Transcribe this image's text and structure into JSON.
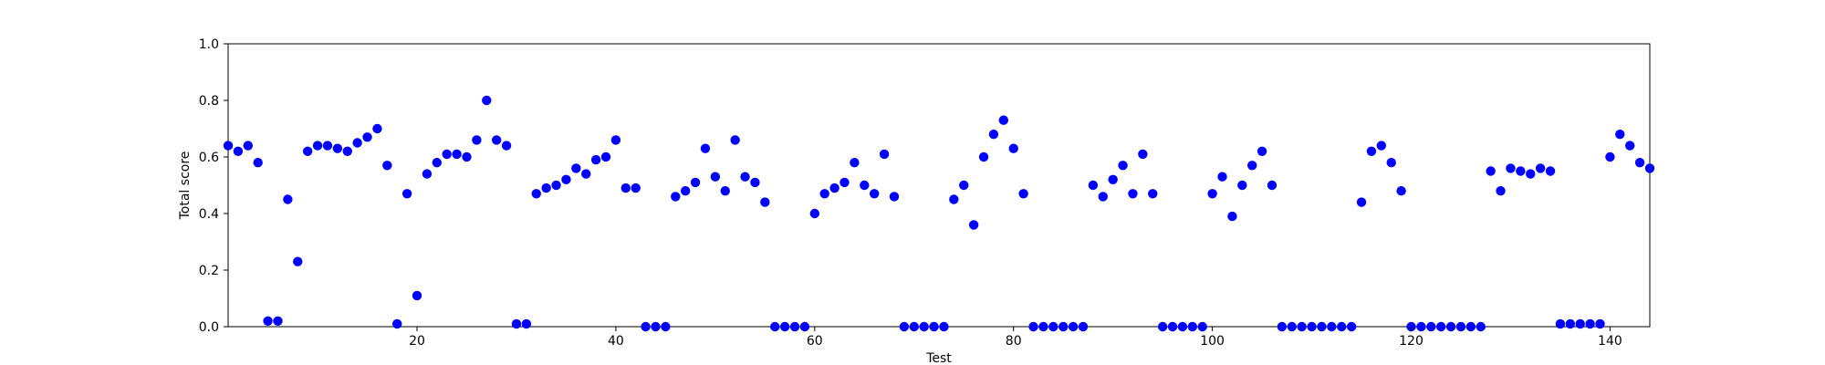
{
  "chart_data": {
    "type": "scatter",
    "title": "",
    "xlabel": "Test",
    "ylabel": "Total score",
    "xlim": [
      1,
      144
    ],
    "ylim": [
      0,
      1
    ],
    "xticks": [
      20,
      40,
      60,
      80,
      100,
      120,
      140
    ],
    "yticks": [
      0.0,
      0.2,
      0.4,
      0.6,
      0.8,
      1.0
    ],
    "grid": false,
    "legend": "none",
    "marker_color": "#0000ff",
    "series": [
      {
        "points": [
          [
            1,
            0.64
          ],
          [
            2,
            0.62
          ],
          [
            3,
            0.64
          ],
          [
            4,
            0.58
          ],
          [
            5,
            0.02
          ],
          [
            6,
            0.02
          ],
          [
            7,
            0.45
          ],
          [
            8,
            0.23
          ],
          [
            9,
            0.62
          ],
          [
            10,
            0.64
          ],
          [
            11,
            0.64
          ],
          [
            12,
            0.63
          ],
          [
            13,
            0.62
          ],
          [
            14,
            0.65
          ],
          [
            15,
            0.67
          ],
          [
            16,
            0.7
          ],
          [
            17,
            0.57
          ],
          [
            18,
            0.01
          ],
          [
            19,
            0.47
          ],
          [
            20,
            0.11
          ],
          [
            21,
            0.54
          ],
          [
            22,
            0.58
          ],
          [
            23,
            0.61
          ],
          [
            24,
            0.61
          ],
          [
            25,
            0.6
          ],
          [
            26,
            0.66
          ],
          [
            27,
            0.8
          ],
          [
            28,
            0.66
          ],
          [
            29,
            0.64
          ],
          [
            30,
            0.01
          ],
          [
            31,
            0.01
          ],
          [
            32,
            0.47
          ],
          [
            33,
            0.49
          ],
          [
            34,
            0.5
          ],
          [
            35,
            0.52
          ],
          [
            36,
            0.56
          ],
          [
            37,
            0.54
          ],
          [
            38,
            0.59
          ],
          [
            39,
            0.6
          ],
          [
            40,
            0.66
          ],
          [
            41,
            0.49
          ],
          [
            42,
            0.49
          ],
          [
            43,
            0.0
          ],
          [
            44,
            0.0
          ],
          [
            45,
            0.0
          ],
          [
            46,
            0.46
          ],
          [
            47,
            0.48
          ],
          [
            48,
            0.51
          ],
          [
            49,
            0.63
          ],
          [
            50,
            0.53
          ],
          [
            51,
            0.48
          ],
          [
            52,
            0.66
          ],
          [
            53,
            0.53
          ],
          [
            54,
            0.51
          ],
          [
            55,
            0.44
          ],
          [
            56,
            0.0
          ],
          [
            57,
            0.0
          ],
          [
            58,
            0.0
          ],
          [
            59,
            0.0
          ],
          [
            60,
            0.4
          ],
          [
            61,
            0.47
          ],
          [
            62,
            0.49
          ],
          [
            63,
            0.51
          ],
          [
            64,
            0.58
          ],
          [
            65,
            0.5
          ],
          [
            66,
            0.47
          ],
          [
            67,
            0.61
          ],
          [
            68,
            0.46
          ],
          [
            69,
            0.0
          ],
          [
            70,
            0.0
          ],
          [
            71,
            0.0
          ],
          [
            72,
            0.0
          ],
          [
            73,
            0.0
          ],
          [
            74,
            0.45
          ],
          [
            75,
            0.5
          ],
          [
            76,
            0.36
          ],
          [
            77,
            0.6
          ],
          [
            78,
            0.68
          ],
          [
            79,
            0.73
          ],
          [
            80,
            0.63
          ],
          [
            81,
            0.47
          ],
          [
            82,
            0.0
          ],
          [
            83,
            0.0
          ],
          [
            84,
            0.0
          ],
          [
            85,
            0.0
          ],
          [
            86,
            0.0
          ],
          [
            87,
            0.0
          ],
          [
            88,
            0.5
          ],
          [
            89,
            0.46
          ],
          [
            90,
            0.52
          ],
          [
            91,
            0.57
          ],
          [
            92,
            0.47
          ],
          [
            93,
            0.61
          ],
          [
            94,
            0.47
          ],
          [
            95,
            0.0
          ],
          [
            96,
            0.0
          ],
          [
            97,
            0.0
          ],
          [
            98,
            0.0
          ],
          [
            99,
            0.0
          ],
          [
            100,
            0.47
          ],
          [
            101,
            0.53
          ],
          [
            102,
            0.39
          ],
          [
            103,
            0.5
          ],
          [
            104,
            0.57
          ],
          [
            105,
            0.62
          ],
          [
            106,
            0.5
          ],
          [
            107,
            0.0
          ],
          [
            108,
            0.0
          ],
          [
            109,
            0.0
          ],
          [
            110,
            0.0
          ],
          [
            111,
            0.0
          ],
          [
            112,
            0.0
          ],
          [
            113,
            0.0
          ],
          [
            114,
            0.0
          ],
          [
            115,
            0.44
          ],
          [
            116,
            0.62
          ],
          [
            117,
            0.64
          ],
          [
            118,
            0.58
          ],
          [
            119,
            0.48
          ],
          [
            120,
            0.0
          ],
          [
            121,
            0.0
          ],
          [
            122,
            0.0
          ],
          [
            123,
            0.0
          ],
          [
            124,
            0.0
          ],
          [
            125,
            0.0
          ],
          [
            126,
            0.0
          ],
          [
            127,
            0.0
          ],
          [
            128,
            0.55
          ],
          [
            129,
            0.48
          ],
          [
            130,
            0.56
          ],
          [
            131,
            0.55
          ],
          [
            132,
            0.54
          ],
          [
            133,
            0.56
          ],
          [
            134,
            0.55
          ],
          [
            135,
            0.01
          ],
          [
            136,
            0.01
          ],
          [
            137,
            0.01
          ],
          [
            138,
            0.01
          ],
          [
            139,
            0.01
          ],
          [
            140,
            0.6
          ],
          [
            141,
            0.68
          ],
          [
            142,
            0.64
          ],
          [
            143,
            0.58
          ],
          [
            144,
            0.56
          ]
        ]
      }
    ]
  }
}
